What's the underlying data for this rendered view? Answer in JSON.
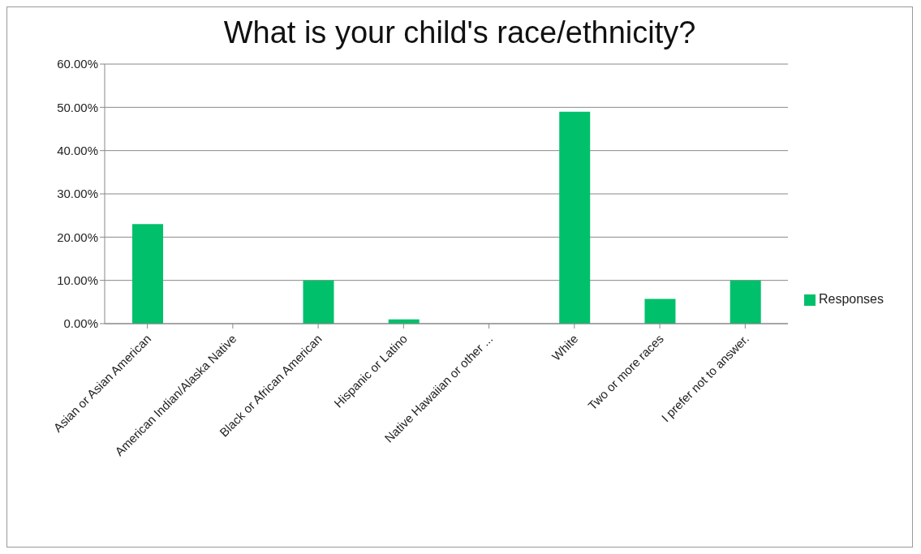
{
  "chart_data": {
    "type": "bar",
    "title": "What is your child's race/ethnicity?",
    "categories": [
      "Asian or Asian American",
      "American Indian/Alaska Native",
      "Black or African American",
      "Hispanic or Latino",
      "Native Hawaiian or other ...",
      "White",
      "Two or more races",
      "I prefer not to answer."
    ],
    "series": [
      {
        "name": "Responses",
        "color": "#00c06b",
        "values": [
          23.0,
          0,
          10.0,
          1.0,
          0,
          49.0,
          5.7,
          10.0
        ]
      }
    ],
    "ylim": [
      0,
      60
    ],
    "yticks": [
      {
        "value": 0,
        "label": "0.00%"
      },
      {
        "value": 10,
        "label": "10.00%"
      },
      {
        "value": 20,
        "label": "20.00%"
      },
      {
        "value": 30,
        "label": "30.00%"
      },
      {
        "value": 40,
        "label": "40.00%"
      },
      {
        "value": 50,
        "label": "50.00%"
      },
      {
        "value": 60,
        "label": "60.00%"
      }
    ],
    "grid": "y",
    "legend": "right"
  }
}
